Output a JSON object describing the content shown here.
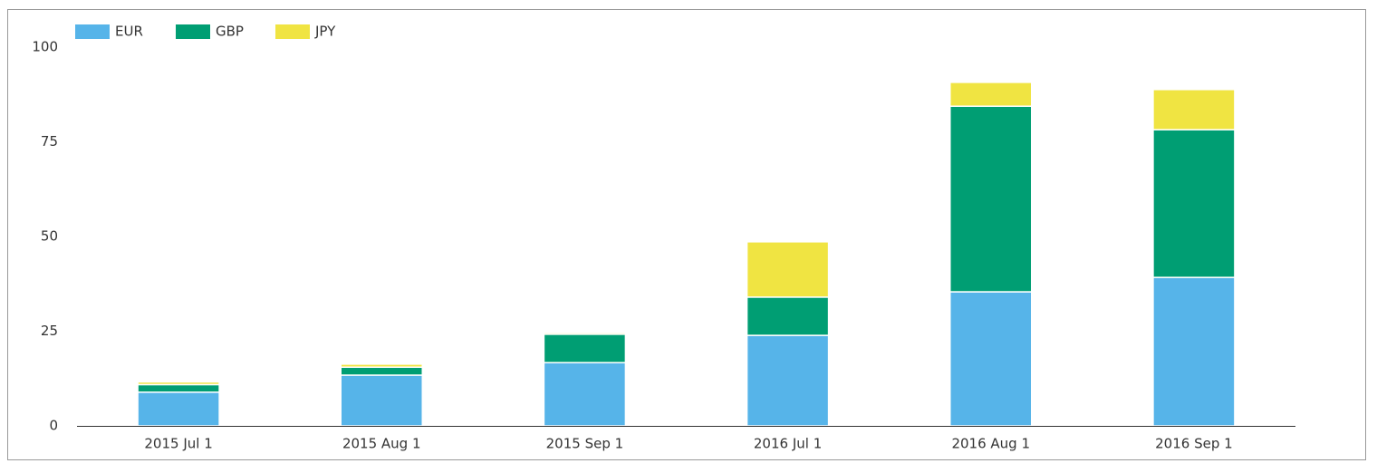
{
  "chart_data": {
    "type": "stacked-bar",
    "categories": [
      "2015 Jul 1",
      "2015 Aug 1",
      "2015 Sep 1",
      "2016 Jul 1",
      "2016 Aug 1",
      "2016 Sep 1"
    ],
    "series": [
      {
        "name": "EUR",
        "color": "#56b4e9",
        "values": [
          8.9,
          13.4,
          16.7,
          23.9,
          35.4,
          39.2
        ]
      },
      {
        "name": "GBP",
        "color": "#009e73",
        "values": [
          2,
          2.1,
          7.5,
          10.1,
          49,
          39
        ]
      },
      {
        "name": "JPY",
        "color": "#f0e442",
        "values": [
          0.7,
          0.8,
          0.4,
          14.6,
          6.3,
          10.6
        ]
      }
    ],
    "ylim": [
      0,
      100
    ],
    "yticks": [
      0,
      25,
      50,
      75,
      100
    ],
    "grid": false,
    "legend": "top-left"
  }
}
